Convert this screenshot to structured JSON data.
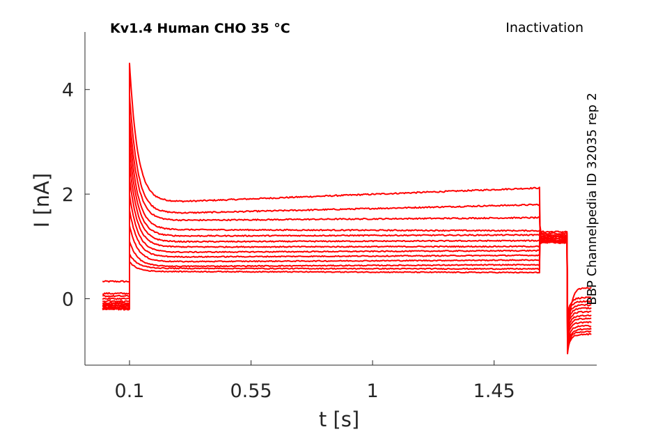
{
  "chart_data": {
    "type": "line",
    "title": "Kv1.4  Human  CHO  35 °C",
    "annotation_top_right": "Inactivation",
    "side_label": "BBP Channelpedia ID 32035 rep 2",
    "xlabel": "t [s]",
    "ylabel": "I [nA]",
    "xlim": [
      -0.065,
      1.83
    ],
    "ylim": [
      -1.27,
      5.1
    ],
    "xticks": [
      0.1,
      0.55,
      1,
      1.45
    ],
    "xtick_labels": [
      "0.1",
      "0.55",
      "1",
      "1.45"
    ],
    "yticks": [
      0,
      2,
      4
    ],
    "ytick_labels": [
      "0",
      "2",
      "4"
    ],
    "grid": false,
    "line_color": "#ff0000",
    "protocol_times": {
      "pre_start": 0.0,
      "step_on": 0.1,
      "step_off": 1.62,
      "tail_off": 1.72,
      "end": 1.81
    },
    "series": [
      {
        "pre": 0.33,
        "peak": 4.5,
        "steady": 1.86,
        "end": 2.12,
        "tail": 1.28,
        "post": 0.21
      },
      {
        "pre": 0.1,
        "peak": 3.9,
        "steady": 1.64,
        "end": 1.8,
        "tail": 1.25,
        "post": 0.02
      },
      {
        "pre": 0.05,
        "peak": 3.5,
        "steady": 1.5,
        "end": 1.55,
        "tail": 1.22,
        "post": -0.05
      },
      {
        "pre": 0.0,
        "peak": 3.2,
        "steady": 1.32,
        "end": 1.3,
        "tail": 1.2,
        "post": -0.12
      },
      {
        "pre": -0.05,
        "peak": 2.9,
        "steady": 1.2,
        "end": 1.22,
        "tail": 1.18,
        "post": -0.18
      },
      {
        "pre": -0.08,
        "peak": 2.6,
        "steady": 1.09,
        "end": 1.11,
        "tail": 1.16,
        "post": -0.25
      },
      {
        "pre": -0.1,
        "peak": 2.3,
        "steady": 0.99,
        "end": 1.0,
        "tail": 1.14,
        "post": -0.32
      },
      {
        "pre": -0.12,
        "peak": 2.0,
        "steady": 0.89,
        "end": 0.92,
        "tail": 1.12,
        "post": -0.38
      },
      {
        "pre": -0.14,
        "peak": 1.7,
        "steady": 0.8,
        "end": 0.83,
        "tail": 1.11,
        "post": -0.45
      },
      {
        "pre": -0.16,
        "peak": 1.4,
        "steady": 0.71,
        "end": 0.74,
        "tail": 1.1,
        "post": -0.52
      },
      {
        "pre": -0.18,
        "peak": 1.1,
        "steady": 0.62,
        "end": 0.65,
        "tail": 1.09,
        "post": -0.58
      },
      {
        "pre": -0.19,
        "peak": 0.85,
        "steady": 0.58,
        "end": 0.57,
        "tail": 1.08,
        "post": -0.63
      },
      {
        "pre": -0.2,
        "peak": 0.7,
        "steady": 0.52,
        "end": 0.5,
        "tail": 1.07,
        "post": -0.68
      }
    ]
  }
}
